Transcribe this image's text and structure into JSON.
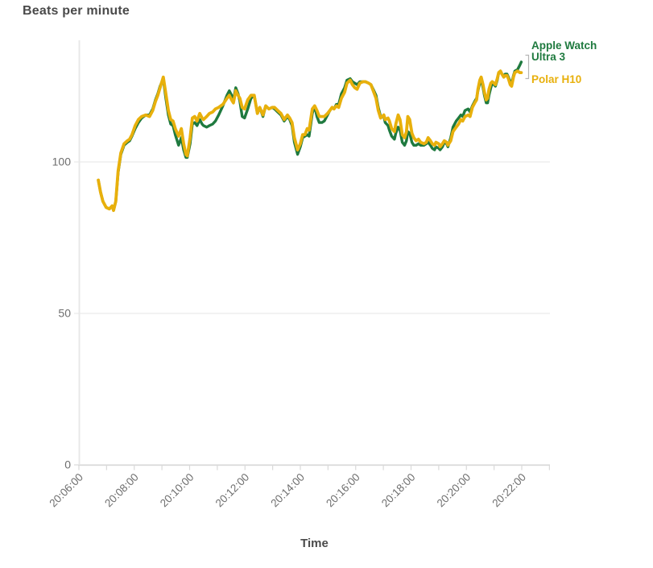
{
  "title": "Beats per minute",
  "x_axis_label": "Time",
  "legend": {
    "apple_label": "Apple Watch Ultra 3",
    "polar_label": "Polar H10"
  },
  "colors": {
    "apple": "#1f7a3f",
    "polar": "#e8b00c",
    "grid": "#e9e9e9",
    "axis": "#d9d9d9",
    "axis_domain": "#e8e8e8",
    "tick_text": "#6e6e6e",
    "title_text": "#4a4a4a",
    "bracket": "#b5b5b5"
  },
  "chart_data": {
    "type": "line",
    "title": "Beats per minute",
    "xlabel": "Time",
    "ylabel": "",
    "grid": "horizontal-only",
    "legend_position": "right-of-line-ends",
    "y_ticks": [
      0,
      50,
      100
    ],
    "ylim": [
      0,
      141
    ],
    "x_start": "20:06:00",
    "x_ticks_major": [
      "20:06:00",
      "20:08:00",
      "20:10:00",
      "20:12:00",
      "20:14:00",
      "20:16:00",
      "20:18:00",
      "20:20:00",
      "20:22:00"
    ],
    "x_major_tick_every_seconds": 120,
    "x_minor_tick_every_seconds": 60,
    "x_axis_end_seconds": 1020,
    "series": [
      {
        "name": "Apple Watch Ultra 3",
        "color": "#1f7a3f"
      },
      {
        "name": "Polar H10",
        "color": "#e8b00c"
      }
    ],
    "point_format": [
      "seconds_after_20:06:00",
      "polar_h10_bpm",
      "apple_watch_bpm"
    ],
    "points": [
      [
        42,
        94,
        94
      ],
      [
        47,
        90,
        90
      ],
      [
        52,
        87,
        87
      ],
      [
        59,
        85,
        85
      ],
      [
        66,
        84.5,
        84.5
      ],
      [
        72,
        85.5,
        85.5
      ],
      [
        75,
        84,
        84
      ],
      [
        80,
        87,
        87
      ],
      [
        85,
        97,
        96.5
      ],
      [
        91,
        103,
        102.5
      ],
      [
        98,
        106,
        105.5
      ],
      [
        105,
        107,
        106.5
      ],
      [
        110,
        107.5,
        107
      ],
      [
        115,
        109,
        108.5
      ],
      [
        122,
        112,
        111
      ],
      [
        129,
        114,
        113
      ],
      [
        136,
        115,
        114.5
      ],
      [
        145,
        115.5,
        115.5
      ],
      [
        153,
        115,
        115.5
      ],
      [
        160,
        117,
        117.5
      ],
      [
        166,
        120,
        120.5
      ],
      [
        171,
        122,
        122.5
      ],
      [
        176,
        124.5,
        125
      ],
      [
        183,
        128,
        127.5
      ],
      [
        188,
        123,
        121.5
      ],
      [
        194,
        117,
        115.5
      ],
      [
        199,
        114,
        112.5
      ],
      [
        204,
        113.5,
        112
      ],
      [
        209,
        111,
        109
      ],
      [
        216,
        108.5,
        105.5
      ],
      [
        222,
        111,
        108
      ],
      [
        227,
        106,
        104
      ],
      [
        232,
        102.5,
        101.5
      ],
      [
        235,
        102,
        101.5
      ],
      [
        241,
        108,
        106
      ],
      [
        246,
        114.5,
        112.5
      ],
      [
        251,
        115,
        113
      ],
      [
        256,
        113.5,
        112
      ],
      [
        262,
        116,
        114
      ],
      [
        267,
        114.5,
        112.5
      ],
      [
        270,
        114,
        112
      ],
      [
        277,
        115,
        111.5
      ],
      [
        283,
        116,
        112
      ],
      [
        290,
        116.5,
        112.5
      ],
      [
        296,
        117.5,
        113.5
      ],
      [
        303,
        118,
        115.5
      ],
      [
        312,
        119,
        118.5
      ],
      [
        321,
        121,
        122
      ],
      [
        326,
        122,
        123.5
      ],
      [
        331,
        120.5,
        122
      ],
      [
        335,
        119.5,
        120.5
      ],
      [
        340,
        123.5,
        124.5
      ],
      [
        345,
        122,
        122.5
      ],
      [
        349,
        121,
        120
      ],
      [
        354,
        118,
        115
      ],
      [
        359,
        117.5,
        114.5
      ],
      [
        366,
        120.5,
        117.5
      ],
      [
        373,
        122,
        121
      ],
      [
        380,
        122,
        122
      ],
      [
        387,
        116,
        116
      ],
      [
        392,
        118,
        118
      ],
      [
        399,
        115.5,
        115
      ],
      [
        405,
        118.5,
        118.5
      ],
      [
        412,
        117.5,
        117.5
      ],
      [
        419,
        118,
        118
      ],
      [
        424,
        118,
        117.5
      ],
      [
        431,
        117,
        116.5
      ],
      [
        438,
        116,
        115.5
      ],
      [
        445,
        114,
        113.5
      ],
      [
        452,
        115.5,
        115
      ],
      [
        457,
        114.5,
        114
      ],
      [
        462,
        113,
        112
      ],
      [
        467,
        108,
        106.5
      ],
      [
        474,
        104,
        102.5
      ],
      [
        480,
        106,
        105
      ],
      [
        485,
        109,
        108
      ],
      [
        490,
        109,
        108.5
      ],
      [
        495,
        111,
        109
      ],
      [
        499,
        110.5,
        108.5
      ],
      [
        506,
        117.5,
        116
      ],
      [
        511,
        118.5,
        118.5
      ],
      [
        516,
        117,
        115
      ],
      [
        521,
        115,
        113
      ],
      [
        527,
        115,
        113
      ],
      [
        532,
        115,
        113.5
      ],
      [
        539,
        116,
        115.5
      ],
      [
        544,
        117,
        117
      ],
      [
        549,
        118,
        118
      ],
      [
        553,
        117.5,
        117.5
      ],
      [
        558,
        118.5,
        119
      ],
      [
        563,
        118,
        119
      ],
      [
        569,
        121,
        122.5
      ],
      [
        576,
        123,
        124.5
      ],
      [
        581,
        126,
        127
      ],
      [
        588,
        127,
        127.5
      ],
      [
        593,
        125.5,
        126.5
      ],
      [
        598,
        124.5,
        126
      ],
      [
        603,
        124,
        125.5
      ],
      [
        609,
        126,
        126.5
      ],
      [
        616,
        126.5,
        126.5
      ],
      [
        621,
        126.5,
        126.5
      ],
      [
        628,
        126,
        126
      ],
      [
        633,
        125.5,
        125.5
      ],
      [
        638,
        123.5,
        124
      ],
      [
        644,
        121,
        122
      ],
      [
        649,
        117,
        118
      ],
      [
        654,
        114.5,
        115
      ],
      [
        661,
        115.5,
        115
      ],
      [
        664,
        114,
        113
      ],
      [
        670,
        114.5,
        112
      ],
      [
        673,
        113.5,
        110.5
      ],
      [
        678,
        111,
        108.5
      ],
      [
        684,
        110,
        107.5
      ],
      [
        687,
        112.5,
        109.5
      ],
      [
        692,
        115.5,
        111.5
      ],
      [
        696,
        114,
        110.5
      ],
      [
        701,
        109,
        106.5
      ],
      [
        706,
        108,
        105.5
      ],
      [
        710,
        110,
        107
      ],
      [
        713,
        115,
        110
      ],
      [
        717,
        114,
        109.5
      ],
      [
        722,
        109.5,
        106.5
      ],
      [
        726,
        108,
        105.5
      ],
      [
        731,
        107,
        105.5
      ],
      [
        736,
        107.5,
        106
      ],
      [
        741,
        106.5,
        105.5
      ],
      [
        748,
        106,
        105.5
      ],
      [
        753,
        106.5,
        106
      ],
      [
        757,
        108,
        106.5
      ],
      [
        762,
        107,
        105.5
      ],
      [
        766,
        106,
        104.5
      ],
      [
        771,
        105.5,
        104
      ],
      [
        774,
        106.5,
        105
      ],
      [
        780,
        106,
        104.5
      ],
      [
        783,
        105,
        104
      ],
      [
        788,
        106,
        105
      ],
      [
        792,
        107,
        106.5
      ],
      [
        797,
        106.5,
        106
      ],
      [
        800,
        105.5,
        105
      ],
      [
        806,
        107,
        108
      ],
      [
        811,
        110,
        111.5
      ],
      [
        818,
        111.5,
        113.5
      ],
      [
        823,
        112.5,
        114.5
      ],
      [
        828,
        114,
        115.5
      ],
      [
        832,
        113.5,
        115
      ],
      [
        837,
        115,
        117
      ],
      [
        844,
        115.5,
        117.5
      ],
      [
        848,
        115,
        116.5
      ],
      [
        853,
        118,
        118.5
      ],
      [
        858,
        119.5,
        120
      ],
      [
        862,
        120.5,
        121
      ],
      [
        865,
        124,
        123.5
      ],
      [
        869,
        127,
        126
      ],
      [
        872,
        128,
        127
      ],
      [
        876,
        125.5,
        124.5
      ],
      [
        879,
        123,
        122
      ],
      [
        883,
        120.5,
        119.5
      ],
      [
        886,
        121,
        119.5
      ],
      [
        889,
        124,
        122
      ],
      [
        893,
        126,
        124.5
      ],
      [
        896,
        126.5,
        126
      ],
      [
        900,
        126,
        125.5
      ],
      [
        903,
        125.5,
        125
      ],
      [
        907,
        127.5,
        127
      ],
      [
        910,
        129.5,
        129.5
      ],
      [
        914,
        130,
        130
      ],
      [
        917,
        129,
        129
      ],
      [
        921,
        128,
        128.5
      ],
      [
        924,
        128.5,
        129
      ],
      [
        928,
        128.5,
        129
      ],
      [
        931,
        127.5,
        128
      ],
      [
        935,
        125.5,
        126.5
      ],
      [
        938,
        125,
        126
      ],
      [
        942,
        128,
        128.5
      ],
      [
        945,
        129.5,
        130
      ],
      [
        951,
        130,
        130.5
      ],
      [
        956,
        129.5,
        132
      ],
      [
        959,
        129.5,
        133
      ]
    ]
  }
}
